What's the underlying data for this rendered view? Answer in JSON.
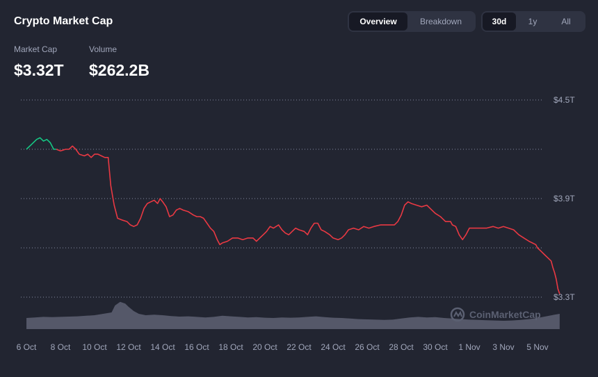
{
  "header": {
    "title": "Crypto Market Cap"
  },
  "view_tabs": [
    {
      "label": "Overview",
      "active": true
    },
    {
      "label": "Breakdown",
      "active": false
    }
  ],
  "range_tabs": [
    {
      "label": "30d",
      "active": true
    },
    {
      "label": "1y",
      "active": false
    },
    {
      "label": "All",
      "active": false
    }
  ],
  "stats": {
    "market_cap_label": "Market Cap",
    "market_cap_value": "$3.32T",
    "volume_label": "Volume",
    "volume_value": "$262.2B"
  },
  "watermark": "CoinMarketCap",
  "colors": {
    "background": "#222531",
    "up": "#16c784",
    "down": "#ea3943",
    "volume": "#5e6273",
    "grid": "#858ca2"
  },
  "chart_data": {
    "type": "line",
    "title": "",
    "xlabel": "",
    "ylabel": "",
    "ylim": [
      3.3,
      4.5
    ],
    "y_ticks": [
      3.3,
      3.9,
      4.5
    ],
    "y_tick_labels": [
      "$3.3T",
      "$3.9T",
      "$4.5T"
    ],
    "grid_lines": [
      3.3,
      3.6,
      3.9,
      4.2,
      4.5
    ],
    "x_tick_labels": [
      "6 Oct",
      "8 Oct",
      "10 Oct",
      "12 Oct",
      "14 Oct",
      "16 Oct",
      "18 Oct",
      "20 Oct",
      "22 Oct",
      "24 Oct",
      "26 Oct",
      "28 Oct",
      "30 Oct",
      "1 Nov",
      "3 Nov",
      "5 Nov"
    ],
    "x_start": "6 Oct",
    "series": [
      {
        "values": [
          [
            0.0,
            4.2
          ],
          [
            0.3,
            4.23
          ],
          [
            0.6,
            4.26
          ],
          [
            0.8,
            4.27
          ],
          [
            1.0,
            4.25
          ],
          [
            1.2,
            4.26
          ],
          [
            1.4,
            4.24
          ],
          [
            1.6,
            4.2
          ],
          [
            1.75,
            4.2
          ],
          [
            2.0,
            4.19
          ],
          [
            2.3,
            4.2
          ],
          [
            2.5,
            4.2
          ],
          [
            2.7,
            4.22
          ],
          [
            2.9,
            4.2
          ],
          [
            3.1,
            4.17
          ],
          [
            3.4,
            4.16
          ],
          [
            3.6,
            4.17
          ],
          [
            3.8,
            4.15
          ],
          [
            4.0,
            4.17
          ],
          [
            4.2,
            4.17
          ],
          [
            4.4,
            4.16
          ],
          [
            4.6,
            4.15
          ],
          [
            4.8,
            4.15
          ],
          [
            4.95,
            3.98
          ],
          [
            5.05,
            3.92
          ],
          [
            5.15,
            3.86
          ],
          [
            5.35,
            3.78
          ],
          [
            5.6,
            3.77
          ],
          [
            5.9,
            3.76
          ],
          [
            6.1,
            3.74
          ],
          [
            6.3,
            3.73
          ],
          [
            6.5,
            3.74
          ],
          [
            6.7,
            3.78
          ],
          [
            6.9,
            3.84
          ],
          [
            7.1,
            3.87
          ],
          [
            7.3,
            3.88
          ],
          [
            7.5,
            3.89
          ],
          [
            7.7,
            3.87
          ],
          [
            7.85,
            3.9
          ],
          [
            8.0,
            3.88
          ],
          [
            8.2,
            3.85
          ],
          [
            8.4,
            3.79
          ],
          [
            8.6,
            3.8
          ],
          [
            8.8,
            3.83
          ],
          [
            9.0,
            3.84
          ],
          [
            9.2,
            3.83
          ],
          [
            9.5,
            3.82
          ],
          [
            9.8,
            3.8
          ],
          [
            10.0,
            3.79
          ],
          [
            10.2,
            3.79
          ],
          [
            10.4,
            3.78
          ],
          [
            10.6,
            3.75
          ],
          [
            10.8,
            3.72
          ],
          [
            11.0,
            3.7
          ],
          [
            11.2,
            3.65
          ],
          [
            11.35,
            3.62
          ],
          [
            11.5,
            3.63
          ],
          [
            11.8,
            3.64
          ],
          [
            12.1,
            3.66
          ],
          [
            12.4,
            3.66
          ],
          [
            12.7,
            3.65
          ],
          [
            13.0,
            3.66
          ],
          [
            13.3,
            3.66
          ],
          [
            13.5,
            3.64
          ],
          [
            13.7,
            3.66
          ],
          [
            13.9,
            3.68
          ],
          [
            14.1,
            3.7
          ],
          [
            14.3,
            3.73
          ],
          [
            14.5,
            3.72
          ],
          [
            14.8,
            3.74
          ],
          [
            15.0,
            3.71
          ],
          [
            15.2,
            3.69
          ],
          [
            15.4,
            3.68
          ],
          [
            15.6,
            3.7
          ],
          [
            15.8,
            3.72
          ],
          [
            16.0,
            3.71
          ],
          [
            16.3,
            3.7
          ],
          [
            16.5,
            3.68
          ],
          [
            16.7,
            3.72
          ],
          [
            16.9,
            3.75
          ],
          [
            17.1,
            3.75
          ],
          [
            17.3,
            3.71
          ],
          [
            17.5,
            3.7
          ],
          [
            17.8,
            3.68
          ],
          [
            18.0,
            3.66
          ],
          [
            18.3,
            3.65
          ],
          [
            18.5,
            3.66
          ],
          [
            18.7,
            3.68
          ],
          [
            18.9,
            3.71
          ],
          [
            19.2,
            3.72
          ],
          [
            19.5,
            3.71
          ],
          [
            19.8,
            3.73
          ],
          [
            20.1,
            3.72
          ],
          [
            20.4,
            3.73
          ],
          [
            20.8,
            3.74
          ],
          [
            21.2,
            3.74
          ],
          [
            21.6,
            3.74
          ],
          [
            21.8,
            3.76
          ],
          [
            22.0,
            3.8
          ],
          [
            22.2,
            3.86
          ],
          [
            22.4,
            3.88
          ],
          [
            22.6,
            3.87
          ],
          [
            22.9,
            3.86
          ],
          [
            23.2,
            3.85
          ],
          [
            23.5,
            3.86
          ],
          [
            23.7,
            3.84
          ],
          [
            24.0,
            3.81
          ],
          [
            24.3,
            3.79
          ],
          [
            24.6,
            3.76
          ],
          [
            24.9,
            3.76
          ],
          [
            25.0,
            3.74
          ],
          [
            25.2,
            3.73
          ],
          [
            25.4,
            3.68
          ],
          [
            25.6,
            3.65
          ],
          [
            25.8,
            3.68
          ],
          [
            26.0,
            3.72
          ],
          [
            26.3,
            3.72
          ],
          [
            26.6,
            3.72
          ],
          [
            27.0,
            3.72
          ],
          [
            27.4,
            3.73
          ],
          [
            27.7,
            3.72
          ],
          [
            28.0,
            3.73
          ],
          [
            28.3,
            3.72
          ],
          [
            28.6,
            3.71
          ],
          [
            28.9,
            3.68
          ],
          [
            29.2,
            3.66
          ],
          [
            29.5,
            3.64
          ],
          [
            29.7,
            3.63
          ],
          [
            29.9,
            3.62
          ],
          [
            30.0,
            3.6
          ],
          [
            30.2,
            3.58
          ],
          [
            30.4,
            3.56
          ],
          [
            30.6,
            3.54
          ],
          [
            30.8,
            3.52
          ],
          [
            30.9,
            3.48
          ],
          [
            31.0,
            3.45
          ],
          [
            31.1,
            3.41
          ],
          [
            31.2,
            3.35
          ],
          [
            31.3,
            3.32
          ]
        ]
      }
    ],
    "up_segment_end_x": 1.75,
    "volume_note": "relative volume profile",
    "volume": [
      [
        0.0,
        0.4
      ],
      [
        0.5,
        0.42
      ],
      [
        1.0,
        0.44
      ],
      [
        1.5,
        0.43
      ],
      [
        2.0,
        0.44
      ],
      [
        2.5,
        0.45
      ],
      [
        3.0,
        0.46
      ],
      [
        3.5,
        0.48
      ],
      [
        4.0,
        0.5
      ],
      [
        4.5,
        0.55
      ],
      [
        5.0,
        0.6
      ],
      [
        5.2,
        0.85
      ],
      [
        5.5,
        0.98
      ],
      [
        5.8,
        0.92
      ],
      [
        6.0,
        0.8
      ],
      [
        6.3,
        0.65
      ],
      [
        6.6,
        0.55
      ],
      [
        7.0,
        0.5
      ],
      [
        7.5,
        0.52
      ],
      [
        8.0,
        0.5
      ],
      [
        8.5,
        0.47
      ],
      [
        9.0,
        0.45
      ],
      [
        9.5,
        0.46
      ],
      [
        10.0,
        0.44
      ],
      [
        10.5,
        0.42
      ],
      [
        11.0,
        0.44
      ],
      [
        11.5,
        0.48
      ],
      [
        12.0,
        0.46
      ],
      [
        12.5,
        0.44
      ],
      [
        13.0,
        0.42
      ],
      [
        13.5,
        0.43
      ],
      [
        14.0,
        0.41
      ],
      [
        14.5,
        0.4
      ],
      [
        15.0,
        0.42
      ],
      [
        15.5,
        0.41
      ],
      [
        16.0,
        0.42
      ],
      [
        16.5,
        0.44
      ],
      [
        17.0,
        0.46
      ],
      [
        17.5,
        0.43
      ],
      [
        18.0,
        0.41
      ],
      [
        18.5,
        0.4
      ],
      [
        19.0,
        0.38
      ],
      [
        19.5,
        0.36
      ],
      [
        20.0,
        0.35
      ],
      [
        20.5,
        0.34
      ],
      [
        21.0,
        0.33
      ],
      [
        21.5,
        0.34
      ],
      [
        22.0,
        0.38
      ],
      [
        22.5,
        0.42
      ],
      [
        23.0,
        0.44
      ],
      [
        23.5,
        0.42
      ],
      [
        24.0,
        0.43
      ],
      [
        24.5,
        0.4
      ],
      [
        25.0,
        0.38
      ],
      [
        25.5,
        0.36
      ],
      [
        26.0,
        0.34
      ],
      [
        26.5,
        0.33
      ],
      [
        27.0,
        0.32
      ],
      [
        27.5,
        0.31
      ],
      [
        28.0,
        0.3
      ],
      [
        28.5,
        0.31
      ],
      [
        29.0,
        0.33
      ],
      [
        29.5,
        0.36
      ],
      [
        30.0,
        0.4
      ],
      [
        30.5,
        0.46
      ],
      [
        31.0,
        0.52
      ],
      [
        31.3,
        0.55
      ]
    ]
  }
}
